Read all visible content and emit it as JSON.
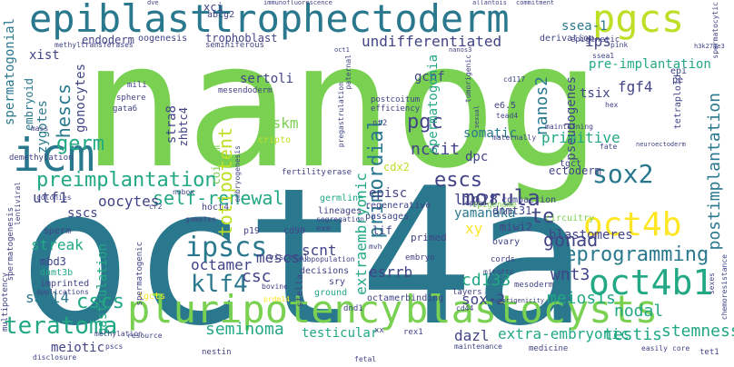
{
  "colors": {
    "background": "#ffffff",
    "palette": [
      "#7ad151",
      "#2a788e",
      "#22a884",
      "#414487",
      "#fde725",
      "#440154",
      "#bddf26",
      "#31688e",
      "#35b779",
      "#482878"
    ]
  },
  "words": {
    "nanog": "nanog",
    "oct4a": "oct4a",
    "icm": "icm",
    "epiblast": "epiblast",
    "trophectoderm": "trophectoderm",
    "pgcs": "pgcs",
    "pluripotency": "pluripotency",
    "blastocysts": "blastocysts",
    "oct4b1": "oct4b1",
    "oct4b": "oct4b",
    "ipscs": "ipscs",
    "klf4": "klf4",
    "octamer": "octamer",
    "teratoma": "teratoma",
    "cscs": "cscs",
    "preimplantation": "preimplantation",
    "morula": "morula",
    "escs": "escs",
    "sox2": "sox2",
    "germ": "germ",
    "self_renewal": "self-renewal",
    "undifferentiated": "undifferentiated",
    "totipotent": "totipotent",
    "primordial": "primordial",
    "reprogramming": "reprogramming",
    "seminoma": "seminoma",
    "extra_embryonic": "extra-embryonic",
    "dazl": "dazl",
    "testis": "testis",
    "stemness": "stemness",
    "gonad": "gonad",
    "blastomeres": "blastomeres",
    "wnt3": "wnt3",
    "meiosis": "meiosis",
    "nodal": "nodal",
    "cd133": "cd133",
    "sox_2": "sox-2",
    "te": "te",
    "xy": "xy",
    "yamanaka": "yamanaka",
    "lin28": "lin28",
    "esrrb": "esrrb",
    "mescs": "mescs",
    "csc": "csc",
    "scnt": "scnt",
    "sall4": "sall4",
    "meiotic": "meiotic",
    "testicular": "testicular",
    "extraembryonic": "extraembryonic",
    "oocytes": "oocytes",
    "utf1": "utf1",
    "sscs": "sscs",
    "streak": "streak",
    "gastrulation": "gastrulation",
    "hescs": "hescs",
    "gonocytes": "gonocytes",
    "spermatogonial": "spermatogonial",
    "embryoid": "embryoid",
    "zygotes": "zygotes",
    "xist": "xist",
    "endoderm": "endoderm",
    "oogenesis": "oogenesis",
    "xci": "xci",
    "abcg2": "abcg2",
    "trophoblast": "trophoblast",
    "seminiferous": "seminiferous",
    "methyltransferases": "methyltransferases",
    "pgc": "pgc",
    "nccit": "nccit",
    "strat8": "stra8",
    "zhbtc4": "zhbtc4",
    "sertoli": "sertoli",
    "oskm": "oskm",
    "coitum": "coitum",
    "dpc": "dpc",
    "somatic": "somatic",
    "primitive": "primitive",
    "ectoderm": "ectoderm",
    "postimplantation": "postimplantation",
    "pseudogenes": "pseudogenes",
    "fgf4": "fgf4",
    "gcnf": "gcnf",
    "ips": "ips",
    "pre_implantation": "pre-implantation",
    "ssea_1": "ssea-1",
    "epigenetic": "epigenetic",
    "derivation": "derivation",
    "nanos2": "nanos2",
    "spermatogonia": "spermatogonia",
    "tsix": "tsix",
    "tetraploid": "tetraploid",
    "epi": "epi",
    "pe": "pe",
    "epiblast_small": "episc",
    "cdx2": "cdx2",
    "regenerative": "regenerative",
    "passages": "passages",
    "germline": "germline",
    "lif": "lif",
    "primed": "primed",
    "dnmt31": "dnmt31",
    "miwi2": "miwi2",
    "ovary": "ovary",
    "circuitry": "circuitry",
    "tgct": "tgct",
    "epigenome": "epigenome",
    "compaction": "compaction",
    "dppa4": "dppa4",
    "mbd3": "mbd3",
    "dnmt3b": "dnmt3b",
    "imprinted": "imprinted",
    "tgcts": "tgcts",
    "sperm": "sperm",
    "multipotency": "multipotency",
    "spermatogenesis": "spermatogenesis",
    "lentiviral": "lentiviral",
    "applications": "applications",
    "pscs": "pscs",
    "disclosure": "disclosure",
    "methylation": "methylation",
    "spermatogenic": "spermatogenic",
    "resource": "resource",
    "hoct4": "hoct4",
    "p19": "p19",
    "cd90": "cd90",
    "visceral": "visceral",
    "exe": "exe",
    "lineages": "lineages",
    "segregation": "segregation",
    "subpopulation": "subpopulation",
    "decisions": "decisions",
    "sry": "sry",
    "ground": "ground",
    "octamerbinding": "octamerbinding",
    "dnd1": "dnd1",
    "xx": "xx",
    "rex1": "rex1",
    "prdm14": "prdm14",
    "stella": "stella",
    "bovine": "bovine",
    "mitotic": "mitotic",
    "mesoderm": "mesoderm",
    "layers": "layers",
    "cord": "cords",
    "cd44": "cd44",
    "maintenance": "maintenance",
    "medicine": "medicine",
    "nestin": "nestin",
    "fetal": "fetal",
    "tet1": "tet1",
    "core": "core",
    "easily": "easily",
    "sexes": "sexes",
    "chemoresistance": "chemoresistance",
    "embryogenesis": "embryogenesis",
    "embryo": "embryo",
    "mvh": "mvh",
    "cripto": "cripto",
    "sphere": "sphere",
    "mili": "mili",
    "gata6": "gata6",
    "mass": "mass",
    "demethylation": "demethylation",
    "mesendoderm": "mesendoderm",
    "pregastrulation": "pregastrulation",
    "postcoitum": "postcoitum",
    "efficiency": "efficiency",
    "nt2": "nt2",
    "spermatocytic": "spermatocytic",
    "e6_5": "e6.5",
    "tead4": "tead4",
    "maternally": "maternally",
    "maintaining": "maintaining",
    "hex": "hex",
    "pink": "pink",
    "neuroectoderm": "neuroectoderm",
    "cd117": "cd117",
    "ssea1": "ssea1",
    "fate": "fate",
    "fertility": "fertility",
    "erase": "erase",
    "nobox": "nobox",
    "cr2": "cr2",
    "gametes": "gametes",
    "colonies": "colonies",
    "paternal": "paternal",
    "immunofluorescence": "immunofluorescence",
    "dve": "dve",
    "allantois": "allantois",
    "commitment": "commitment",
    "h3k27me3": "h3k27me3",
    "nanos3": "nanos3",
    "oct1": "oct1",
    "sexual": "sexual",
    "tumorigenic": "tumorigenic",
    "tumorigenicity": "tumorigenicity"
  }
}
